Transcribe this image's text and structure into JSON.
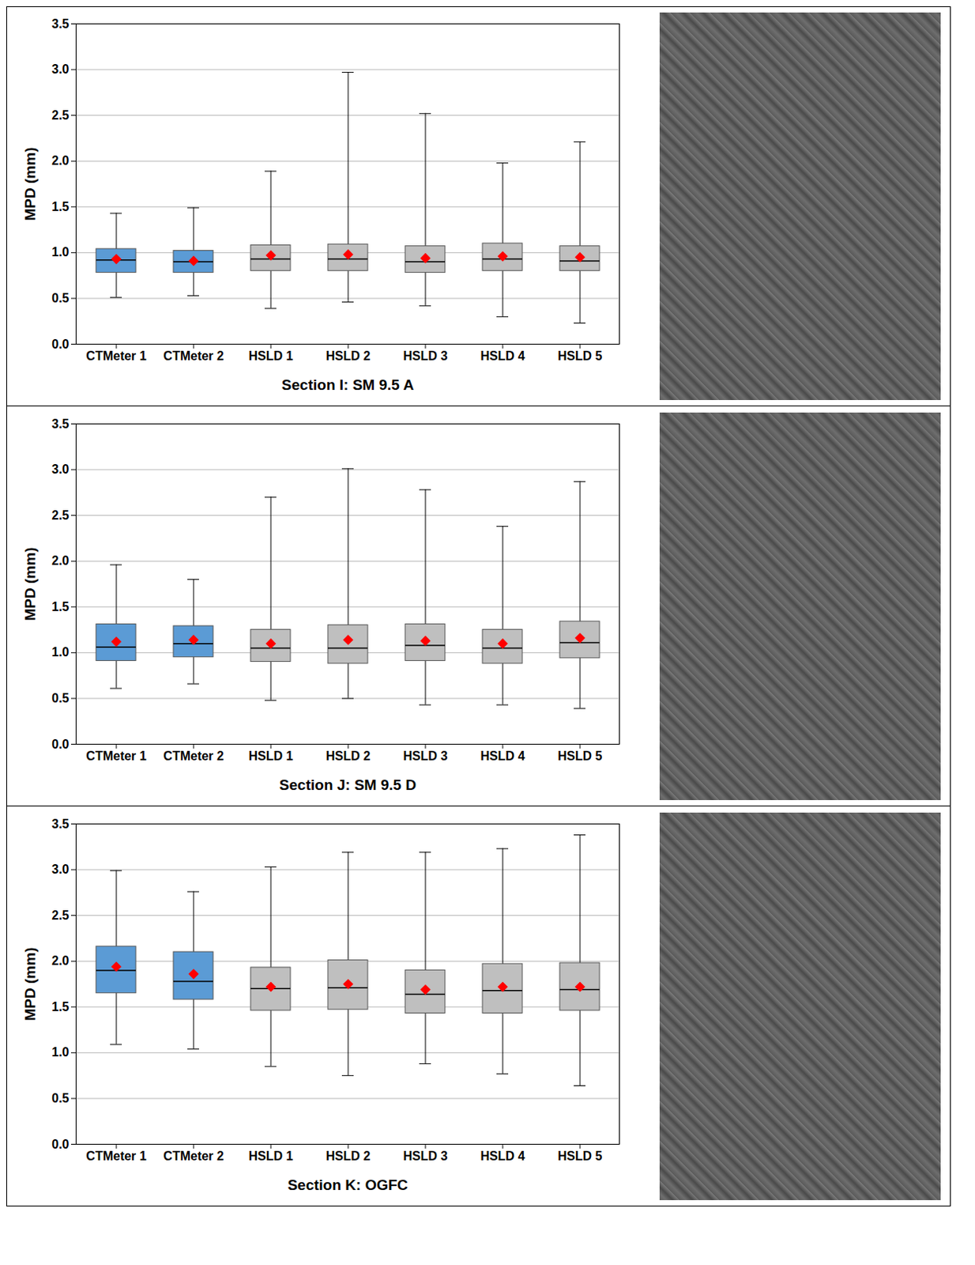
{
  "chart_data": [
    {
      "type": "box",
      "xlabel": "Section I: SM 9.5 A",
      "ylabel": "MPD (mm)",
      "categories": [
        "CTMeter 1",
        "CTMeter 2",
        "HSLD 1",
        "HSLD 2",
        "HSLD 3",
        "HSLD 4",
        "HSLD 5"
      ],
      "min": [
        0.51,
        0.53,
        0.39,
        0.46,
        0.42,
        0.3,
        0.23
      ],
      "q1": [
        0.78,
        0.78,
        0.8,
        0.8,
        0.78,
        0.8,
        0.8
      ],
      "median": [
        0.92,
        0.9,
        0.93,
        0.93,
        0.9,
        0.93,
        0.91
      ],
      "q3": [
        1.04,
        1.02,
        1.08,
        1.09,
        1.07,
        1.1,
        1.07
      ],
      "max": [
        1.43,
        1.49,
        1.89,
        2.97,
        2.52,
        1.98,
        2.21
      ],
      "mean": [
        0.93,
        0.91,
        0.97,
        0.98,
        0.94,
        0.96,
        0.95
      ],
      "colors": [
        "#5b9bd5",
        "#5b9bd5",
        "#bfbfbf",
        "#bfbfbf",
        "#bfbfbf",
        "#bfbfbf",
        "#bfbfbf"
      ],
      "marker": "diamond",
      "grid": true,
      "ylim": [
        0,
        3.5
      ],
      "yticks": [
        {
          "value": 0,
          "label": "0.0"
        },
        {
          "value": 0.5,
          "label": "0.5"
        },
        {
          "value": 1,
          "label": "1.0"
        },
        {
          "value": 1.5,
          "label": "1.5"
        },
        {
          "value": 2,
          "label": "2.0"
        },
        {
          "value": 2.5,
          "label": "2.5"
        },
        {
          "value": 3,
          "label": "3.0"
        },
        {
          "value": 3.5,
          "label": "3.5"
        }
      ]
    },
    {
      "type": "box",
      "xlabel": "Section J: SM 9.5 D",
      "ylabel": "MPD (mm)",
      "categories": [
        "CTMeter 1",
        "CTMeter 2",
        "HSLD 1",
        "HSLD 2",
        "HSLD 3",
        "HSLD 4",
        "HSLD 5"
      ],
      "min": [
        0.61,
        0.66,
        0.48,
        0.5,
        0.43,
        0.43,
        0.39
      ],
      "q1": [
        0.91,
        0.95,
        0.9,
        0.88,
        0.91,
        0.88,
        0.94
      ],
      "median": [
        1.06,
        1.1,
        1.05,
        1.05,
        1.08,
        1.05,
        1.11
      ],
      "q3": [
        1.31,
        1.29,
        1.25,
        1.3,
        1.31,
        1.25,
        1.34
      ],
      "max": [
        1.96,
        1.8,
        2.7,
        3.01,
        2.78,
        2.38,
        2.87
      ],
      "mean": [
        1.12,
        1.14,
        1.1,
        1.14,
        1.13,
        1.1,
        1.16
      ],
      "colors": [
        "#5b9bd5",
        "#5b9bd5",
        "#bfbfbf",
        "#bfbfbf",
        "#bfbfbf",
        "#bfbfbf",
        "#bfbfbf"
      ],
      "marker": "diamond",
      "grid": true,
      "ylim": [
        0,
        3.5
      ],
      "yticks": [
        {
          "value": 0,
          "label": "0.0"
        },
        {
          "value": 0.5,
          "label": "0.5"
        },
        {
          "value": 1,
          "label": "1.0"
        },
        {
          "value": 1.5,
          "label": "1.5"
        },
        {
          "value": 2,
          "label": "2.0"
        },
        {
          "value": 2.5,
          "label": "2.5"
        },
        {
          "value": 3,
          "label": "3.0"
        },
        {
          "value": 3.5,
          "label": "3.5"
        }
      ]
    },
    {
      "type": "box",
      "xlabel": "Section K: OGFC",
      "ylabel": "MPD (mm)",
      "categories": [
        "CTMeter 1",
        "CTMeter 2",
        "HSLD 1",
        "HSLD 2",
        "HSLD 3",
        "HSLD 4",
        "HSLD 5"
      ],
      "min": [
        1.09,
        1.04,
        0.85,
        0.75,
        0.88,
        0.77,
        0.64
      ],
      "q1": [
        1.65,
        1.58,
        1.46,
        1.47,
        1.43,
        1.43,
        1.46
      ],
      "median": [
        1.9,
        1.78,
        1.7,
        1.71,
        1.64,
        1.68,
        1.69
      ],
      "q3": [
        2.16,
        2.1,
        1.93,
        2.01,
        1.9,
        1.97,
        1.98
      ],
      "max": [
        2.99,
        2.76,
        3.03,
        3.19,
        3.19,
        3.23,
        3.38
      ],
      "mean": [
        1.94,
        1.86,
        1.72,
        1.75,
        1.69,
        1.72,
        1.72
      ],
      "colors": [
        "#5b9bd5",
        "#5b9bd5",
        "#bfbfbf",
        "#bfbfbf",
        "#bfbfbf",
        "#bfbfbf",
        "#bfbfbf"
      ],
      "marker": "diamond",
      "grid": true,
      "ylim": [
        0,
        3.5
      ],
      "yticks": [
        {
          "value": 0,
          "label": "0.0"
        },
        {
          "value": 0.5,
          "label": "0.5"
        },
        {
          "value": 1,
          "label": "1.0"
        },
        {
          "value": 1.5,
          "label": "1.5"
        },
        {
          "value": 2,
          "label": "2.0"
        },
        {
          "value": 2.5,
          "label": "2.5"
        },
        {
          "value": 3,
          "label": "3.0"
        },
        {
          "value": 3.5,
          "label": "3.5"
        }
      ]
    }
  ]
}
